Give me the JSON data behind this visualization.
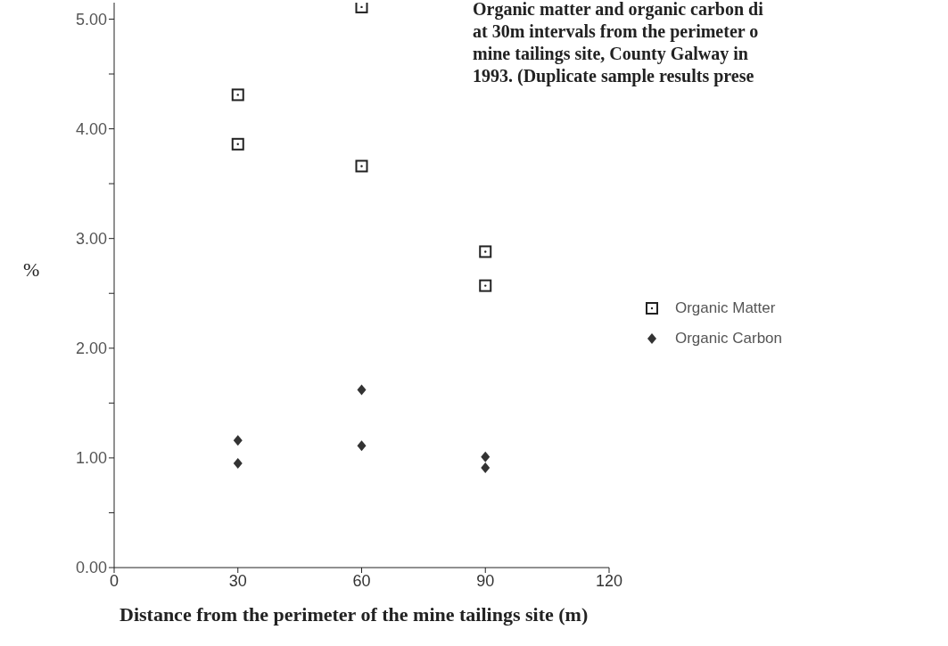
{
  "chart_data": {
    "type": "scatter",
    "title": "Organic matter and organic carbon di\nat 30m intervals from the perimeter o\nmine tailings site, County Galway in\n1993. (Duplicate sample results prese",
    "xlabel": "Distance from the perimeter of the mine tailings site (m)",
    "ylabel": "%",
    "xlim": [
      0,
      120
    ],
    "xticks": [
      0,
      30,
      60,
      90,
      120
    ],
    "ylim": [
      0,
      5.15
    ],
    "yticks": [
      {
        "value": 0,
        "label": "0.00"
      },
      {
        "value": 0.5,
        "label": null
      },
      {
        "value": 1,
        "label": "1.00"
      },
      {
        "value": 1.5,
        "label": null
      },
      {
        "value": 2,
        "label": "2.00"
      },
      {
        "value": 2.5,
        "label": null
      },
      {
        "value": 3,
        "label": "3.00"
      },
      {
        "value": 3.5,
        "label": null
      },
      {
        "value": 4,
        "label": "4.00"
      },
      {
        "value": 4.5,
        "label": null
      },
      {
        "value": 5,
        "label": "5.00"
      }
    ],
    "grid": false,
    "legend": "right",
    "series": [
      {
        "name": "Organic Matter",
        "color": "#222222",
        "marker": "square",
        "x": [
          30,
          30,
          60,
          60,
          90,
          90
        ],
        "values": [
          4.31,
          3.86,
          5.11,
          3.66,
          2.88,
          2.57
        ]
      },
      {
        "name": "Organic Carbon",
        "color": "#333333",
        "marker": "diamond",
        "x": [
          30,
          30,
          60,
          60,
          90,
          90
        ],
        "values": [
          1.16,
          0.95,
          1.62,
          1.11,
          1.01,
          0.91
        ]
      }
    ]
  }
}
